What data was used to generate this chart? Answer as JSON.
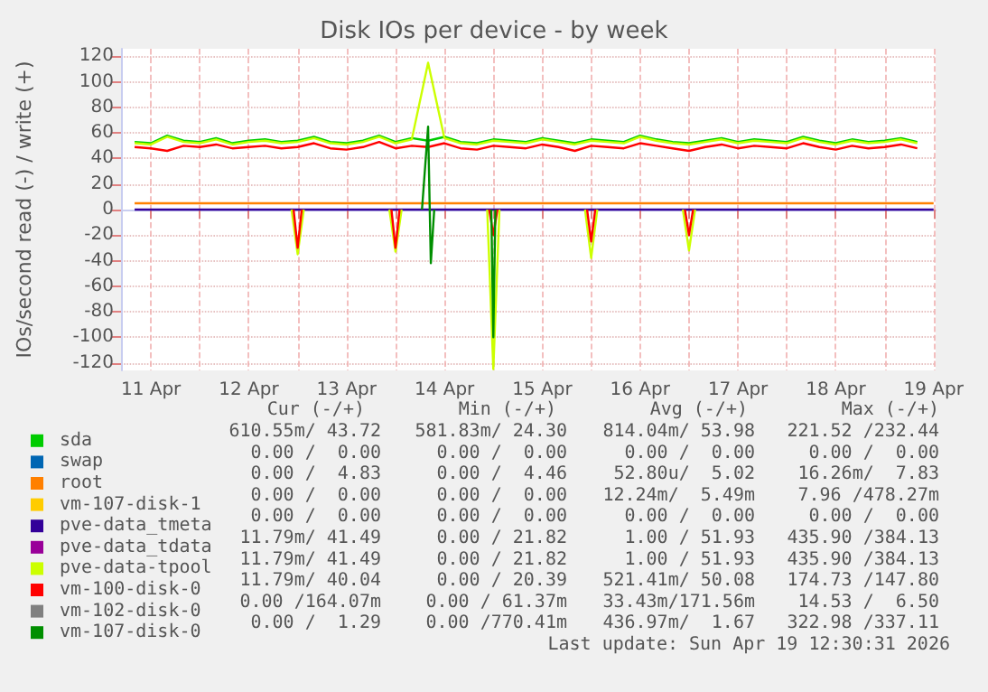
{
  "chart_data": {
    "type": "line",
    "title": "Disk IOs per device - by week",
    "ylabel": "IOs/second read (-) / write (+)",
    "x": [
      "2026-04-11T08:00",
      "2026-04-11T12:00",
      "2026-04-11T16:00",
      "2026-04-11T20:00",
      "2026-04-12T00:00",
      "2026-04-12T04:00",
      "2026-04-12T08:00",
      "2026-04-12T12:00",
      "2026-04-12T16:00",
      "2026-04-12T20:00",
      "2026-04-13T00:00",
      "2026-04-13T04:00",
      "2026-04-13T08:00",
      "2026-04-13T12:00",
      "2026-04-13T16:00",
      "2026-04-13T20:00",
      "2026-04-14T00:00",
      "2026-04-14T04:00",
      "2026-04-14T08:00",
      "2026-04-14T12:00",
      "2026-04-14T16:00",
      "2026-04-14T20:00",
      "2026-04-15T00:00",
      "2026-04-15T04:00",
      "2026-04-15T08:00",
      "2026-04-15T12:00",
      "2026-04-15T16:00",
      "2026-04-15T20:00",
      "2026-04-16T00:00",
      "2026-04-16T04:00",
      "2026-04-16T08:00",
      "2026-04-16T12:00",
      "2026-04-16T16:00",
      "2026-04-16T20:00",
      "2026-04-17T00:00",
      "2026-04-17T04:00",
      "2026-04-17T08:00",
      "2026-04-17T12:00",
      "2026-04-17T16:00",
      "2026-04-17T20:00",
      "2026-04-18T00:00",
      "2026-04-18T04:00",
      "2026-04-18T08:00",
      "2026-04-18T12:00",
      "2026-04-18T16:00",
      "2026-04-18T20:00",
      "2026-04-19T00:00",
      "2026-04-19T04:00",
      "2026-04-19T08:00"
    ],
    "xlim": [
      "2026-04-11T04:40",
      "2026-04-19T12:30"
    ],
    "xticks": [
      {
        "value": "2026-04-11T12:00",
        "label": "11 Apr"
      },
      {
        "value": "2026-04-12T00:00",
        "label": null
      },
      {
        "value": "2026-04-12T12:00",
        "label": "12 Apr"
      },
      {
        "value": "2026-04-13T00:00",
        "label": null
      },
      {
        "value": "2026-04-13T12:00",
        "label": "13 Apr"
      },
      {
        "value": "2026-04-14T00:00",
        "label": null
      },
      {
        "value": "2026-04-14T12:00",
        "label": "14 Apr"
      },
      {
        "value": "2026-04-15T00:00",
        "label": null
      },
      {
        "value": "2026-04-15T12:00",
        "label": "15 Apr"
      },
      {
        "value": "2026-04-16T00:00",
        "label": null
      },
      {
        "value": "2026-04-16T12:00",
        "label": "16 Apr"
      },
      {
        "value": "2026-04-17T00:00",
        "label": null
      },
      {
        "value": "2026-04-17T12:00",
        "label": "17 Apr"
      },
      {
        "value": "2026-04-18T00:00",
        "label": null
      },
      {
        "value": "2026-04-18T12:00",
        "label": "18 Apr"
      },
      {
        "value": "2026-04-19T00:00",
        "label": null
      },
      {
        "value": "2026-04-19T12:00",
        "label": "19 Apr"
      }
    ],
    "ylim": [
      -126,
      126
    ],
    "yticks": [
      -120,
      -100,
      -80,
      -60,
      -40,
      -20,
      0,
      20,
      40,
      60,
      80,
      100,
      120
    ],
    "grid": true,
    "legend": "bottom",
    "marker": "none",
    "line_style": "solid",
    "series": [
      {
        "name": "sda",
        "color": "#00cc00",
        "values": [
          53,
          52,
          58,
          54,
          53,
          56,
          52,
          54,
          55,
          53,
          54,
          57,
          53,
          52,
          54,
          58,
          53,
          56,
          54,
          57,
          53,
          52,
          55,
          54,
          53,
          56,
          54,
          52,
          55,
          54,
          53,
          58,
          55,
          53,
          52,
          54,
          56,
          53,
          55,
          54,
          53,
          57,
          54,
          52,
          55,
          53,
          54,
          56,
          53
        ]
      },
      {
        "name": "swap",
        "color": "#0066b3",
        "values": [
          null,
          null,
          null,
          null,
          null,
          null,
          null,
          null,
          null,
          null,
          null,
          null,
          null,
          null,
          null,
          null,
          null,
          null,
          null,
          null,
          null,
          null,
          null,
          null,
          null,
          null,
          null,
          null,
          null,
          null,
          null,
          null,
          null,
          null,
          null,
          null,
          null,
          null,
          null,
          null,
          null,
          null,
          null,
          null,
          null,
          null,
          null,
          null,
          null
        ]
      },
      {
        "name": "root",
        "color": "#ff8000",
        "x": [
          "2026-04-11T08:00",
          "2026-04-19T12:00"
        ],
        "values": [
          5,
          5
        ]
      },
      {
        "name": "vm-107-disk-1",
        "color": "#ffcc00",
        "values": [
          null,
          null,
          null,
          null,
          null,
          null,
          null,
          null,
          null,
          null,
          null,
          null,
          null,
          null,
          null,
          null,
          null,
          null,
          null,
          null,
          null,
          null,
          null,
          null,
          null,
          null,
          null,
          null,
          null,
          null,
          null,
          null,
          null,
          null,
          null,
          null,
          null,
          null,
          null,
          null,
          null,
          null,
          null,
          null,
          null,
          null,
          null,
          null,
          null
        ]
      },
      {
        "name": "pve-data_tmeta",
        "color": "#330099",
        "x": [
          "2026-04-11T08:00",
          "2026-04-19T12:00"
        ],
        "values": [
          0,
          0
        ]
      },
      {
        "name": "pve-data_tdata",
        "color": "#990099",
        "values": [
          null,
          null,
          null,
          null,
          null,
          null,
          null,
          null,
          null,
          null,
          null,
          null,
          null,
          null,
          null,
          null,
          null,
          null,
          null,
          null,
          null,
          null,
          null,
          null,
          null,
          null,
          null,
          null,
          null,
          null,
          null,
          null,
          null,
          null,
          null,
          null,
          null,
          null,
          null,
          null,
          null,
          null,
          null,
          null,
          null,
          null,
          null,
          null,
          null
        ]
      },
      {
        "name": "pve-data-tpool",
        "color": "#ccff00",
        "values": [
          52,
          51,
          57,
          53,
          52,
          55,
          51,
          53,
          54,
          52,
          53,
          56,
          52,
          51,
          53,
          57,
          52,
          55,
          115,
          56,
          52,
          51,
          54,
          53,
          52,
          55,
          53,
          51,
          54,
          53,
          52,
          57,
          54,
          52,
          51,
          53,
          55,
          52,
          54,
          53,
          52,
          56,
          53,
          51,
          54,
          52,
          53,
          55,
          52
        ]
      },
      {
        "color": "#ccff00",
        "x": [
          "2026-04-12T22:30",
          "2026-04-13T00:00",
          "2026-04-13T01:30",
          "2026-04-13T12:00",
          "2026-04-13T22:30",
          "2026-04-14T00:00",
          "2026-04-14T01:30",
          "2026-04-14T12:00",
          "2026-04-14T22:30",
          "2026-04-15T00:00",
          "2026-04-15T01:30",
          "2026-04-15T12:00",
          "2026-04-15T22:30",
          "2026-04-16T00:00",
          "2026-04-16T01:30",
          "2026-04-16T12:00",
          "2026-04-16T22:30",
          "2026-04-17T00:00",
          "2026-04-17T01:30"
        ],
        "values": [
          0,
          -35,
          0,
          null,
          0,
          -33,
          0,
          null,
          0,
          -125,
          0,
          null,
          0,
          -38,
          0,
          null,
          0,
          -32,
          0
        ]
      },
      {
        "name": "vm-100-disk-0",
        "color": "#ff0000",
        "values": [
          49,
          48,
          46,
          50,
          49,
          51,
          48,
          49,
          50,
          48,
          49,
          52,
          48,
          47,
          49,
          53,
          48,
          50,
          49,
          52,
          48,
          47,
          50,
          49,
          48,
          51,
          49,
          46,
          50,
          49,
          48,
          52,
          50,
          48,
          46,
          49,
          51,
          48,
          50,
          49,
          48,
          52,
          49,
          47,
          50,
          48,
          49,
          51,
          48
        ]
      },
      {
        "color": "#ff0000",
        "x": [
          "2026-04-12T23:00",
          "2026-04-13T00:00",
          "2026-04-13T01:00",
          "2026-04-13T12:00",
          "2026-04-13T23:00",
          "2026-04-14T00:00",
          "2026-04-14T01:00",
          "2026-04-14T12:00",
          "2026-04-14T23:00",
          "2026-04-15T00:00",
          "2026-04-15T01:00",
          "2026-04-15T12:00",
          "2026-04-15T23:00",
          "2026-04-16T00:00",
          "2026-04-16T01:00",
          "2026-04-16T12:00",
          "2026-04-16T23:00",
          "2026-04-17T00:00",
          "2026-04-17T01:00"
        ],
        "values": [
          0,
          -30,
          0,
          null,
          0,
          -30,
          0,
          null,
          0,
          -20,
          0,
          null,
          0,
          -25,
          0,
          null,
          0,
          -20,
          0
        ]
      },
      {
        "name": "vm-102-disk-0",
        "color": "#808080",
        "values": [
          null,
          null,
          null,
          null,
          null,
          null,
          null,
          null,
          null,
          null,
          null,
          null,
          null,
          null,
          null,
          null,
          null,
          null,
          null,
          null,
          null,
          null,
          null,
          null,
          null,
          null,
          null,
          null,
          null,
          null,
          null,
          null,
          null,
          null,
          null,
          null,
          null,
          null,
          null,
          null,
          null,
          null,
          null,
          null,
          null,
          null,
          null,
          null,
          null
        ]
      },
      {
        "name": "vm-107-disk-0",
        "color": "#008f00",
        "x": [
          "2026-04-14T06:30",
          "2026-04-14T08:00",
          "2026-04-14T08:40",
          "2026-04-14T09:30",
          "2026-04-14T16:00",
          "2026-04-14T23:30",
          "2026-04-15T00:00",
          "2026-04-15T00:30"
        ],
        "values": [
          0,
          65,
          -42,
          0,
          null,
          0,
          -100,
          0
        ]
      }
    ],
    "annotations": [
      "Cur (-/+)",
      "Min (-/+)",
      "Avg (-/+)",
      "Max (-/+)",
      "610.55m/ 43.72",
      "581.83m/ 24.30",
      "814.04m/ 53.98",
      "221.52 /232.44",
      "0.00 /  0.00",
      "0.00 /  0.00",
      "0.00 /  0.00",
      "0.00 /  0.00",
      "0.00 /  4.83",
      "0.00 /  4.46",
      "52.80u/  5.02",
      "16.26m/  7.83",
      "0.00 /  0.00",
      "0.00 /  0.00",
      "12.24m/  5.49m",
      "7.96 /478.27m",
      "0.00 /  0.00",
      "0.00 /  0.00",
      "0.00 /  0.00",
      "0.00 /  0.00",
      "11.79m/ 41.49",
      "0.00 / 21.82",
      "1.00 / 51.93",
      "435.90 /384.13",
      "11.79m/ 41.49",
      "0.00 / 21.82",
      "1.00 / 51.93",
      "435.90 /384.13",
      "11.79m/ 40.04",
      "0.00 / 20.39",
      "521.41m/ 50.08",
      "174.73 /147.80",
      "0.00 /164.07m",
      "0.00 / 61.37m",
      "33.43m/171.56m",
      "14.53 /  6.50",
      "0.00 /  1.29",
      "0.00 /770.41m",
      "436.97m/  1.67",
      "322.98 /337.11",
      "Last update: Sun Apr 19 12:30:31 2026"
    ]
  }
}
